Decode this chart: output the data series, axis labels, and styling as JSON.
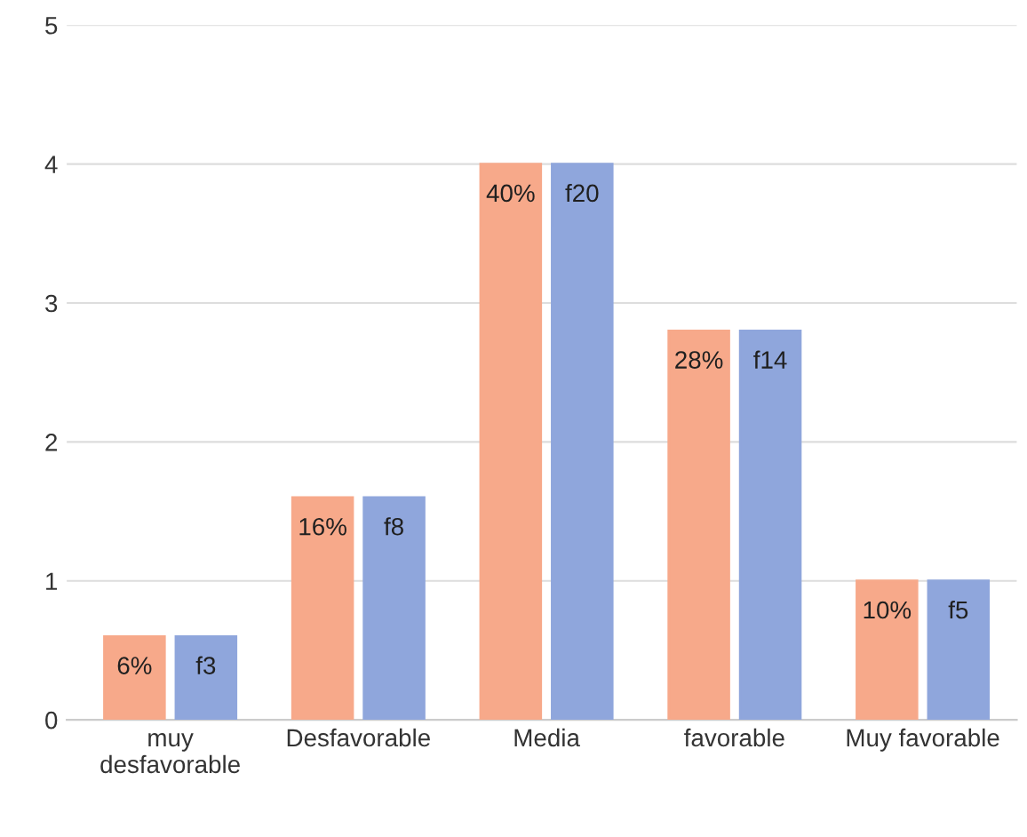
{
  "chart_data": {
    "type": "bar",
    "categories": [
      "muy\ndesfavorable",
      "Desfavorable",
      "Media",
      "favorable",
      "Muy favorable"
    ],
    "series": [
      {
        "color": "#f7a98a",
        "values": [
          0.6,
          1.6,
          4,
          2.8,
          1
        ]
      },
      {
        "color": "#8fa6dc",
        "values": [
          0.6,
          1.6,
          4,
          2.8,
          1
        ],
        "value_labels": [
          "f3",
          "f8",
          "f20",
          "f14",
          "f5"
        ]
      }
    ],
    "annotations": [
      {
        "text": "6%",
        "x": "muy\ndesfavorable",
        "y": 0.6
      },
      {
        "text": "16%",
        "x": "Desfavorable",
        "y": 1.6
      },
      {
        "text": "40%",
        "x": "Media",
        "y": 4
      },
      {
        "text": "28%",
        "x": "favorable",
        "y": 2.8
      },
      {
        "text": "10%",
        "x": "Muy favorable",
        "y": 1
      }
    ],
    "ylim": [
      0,
      5
    ],
    "yticks": [
      0,
      1,
      2,
      3,
      4,
      5
    ],
    "grid": "y",
    "legend": false
  }
}
